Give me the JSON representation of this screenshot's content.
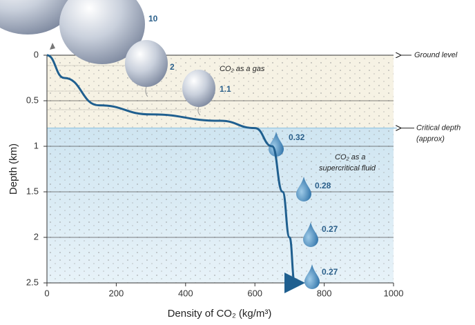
{
  "chart_data": {
    "type": "line",
    "x_label": "Density of CO₂ (kg/m³)",
    "y_label": "Depth (km)",
    "x": [
      0,
      50,
      150,
      300,
      500,
      600,
      650,
      680,
      700,
      715
    ],
    "values": [
      0,
      0.25,
      0.55,
      0.65,
      0.72,
      0.8,
      1.0,
      1.5,
      2.0,
      2.5
    ],
    "color": "#1f5f8f",
    "xlim": [
      0,
      1000
    ],
    "xticks": [
      0,
      200,
      400,
      600,
      800,
      1000
    ],
    "ylim": [
      0,
      2.5
    ],
    "yticks": [
      0,
      0.5,
      1,
      1.5,
      2,
      2.5
    ],
    "y_inverted": true,
    "grid": true,
    "critical_depth": 0.8,
    "annotations": {
      "ground_level": "Ground level",
      "critical_depth": [
        "Critical depth",
        "(approx)"
      ],
      "gas": "CO₂ as a gas",
      "fluid": [
        "CO₂ as a",
        "supercritical fluid"
      ]
    },
    "relative_volumes": [
      10,
      2,
      1.1,
      0.32,
      0.28,
      0.27,
      0.27
    ]
  }
}
